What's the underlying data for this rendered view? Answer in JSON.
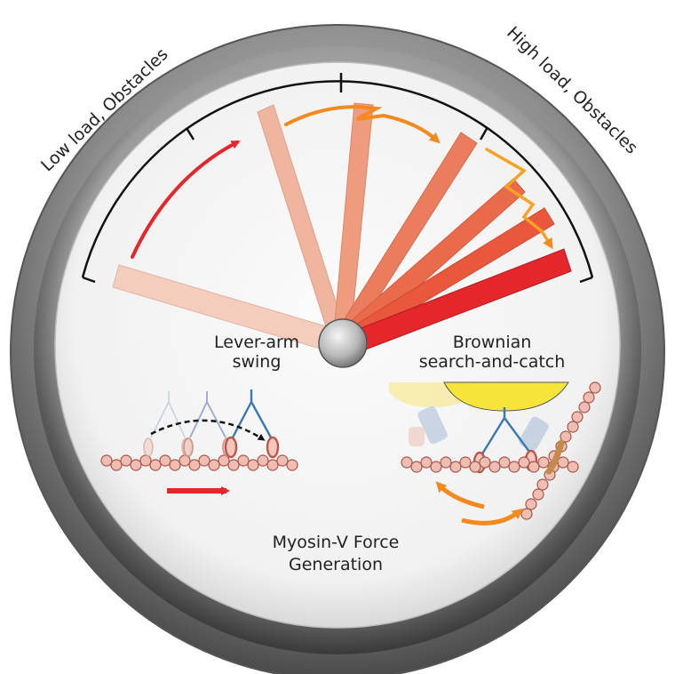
{
  "gauge": {
    "arc_label_left": "Low load, Obstacles",
    "arc_label_right": "High load, Obstacles",
    "label_lever_line1": "Lever-arm",
    "label_lever_line2": "swing",
    "label_brownian_line1": "Brownian",
    "label_brownian_line2": "search-and-catch",
    "title_line1": "Myosin-V Force",
    "title_line2": "Generation"
  },
  "colors": {
    "needle_final": "#e5262b",
    "needle_pale": "#f2c3b1",
    "arrow_red": "#e5262b",
    "arrow_orange": "#f28a1f",
    "actin": "#e8a89a",
    "myosin_blue": "#3a78b0"
  },
  "icons": [
    "lever-arm-swing-icon",
    "brownian-search-icon"
  ]
}
